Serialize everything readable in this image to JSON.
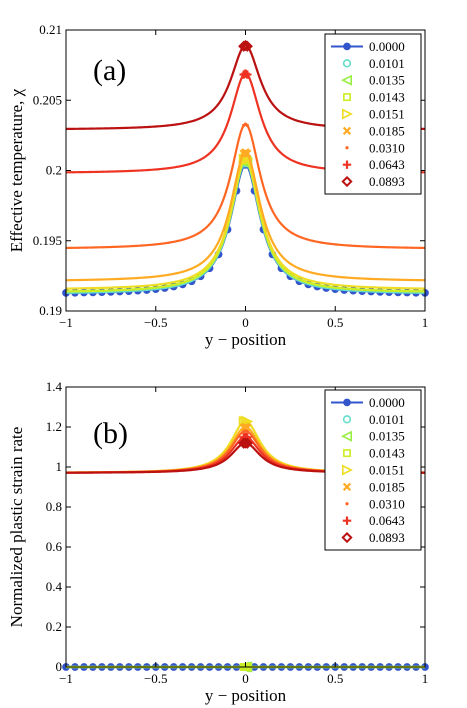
{
  "figure": {
    "panels": [
      {
        "label": "(a)",
        "xlabel": "y − position",
        "ylabel": "Effective temperature, χ",
        "xlim": [
          -1,
          1
        ],
        "ylim": [
          0.19,
          0.21
        ],
        "xticks": [
          "−1",
          "−0.5",
          "0",
          "0.5",
          "1"
        ],
        "yticks": [
          "0.19",
          "0.195",
          "0.2",
          "0.205",
          "0.21"
        ],
        "legend": [
          "0.0000",
          "0.0101",
          "0.0135",
          "0.0143",
          "0.0151",
          "0.0185",
          "0.0310",
          "0.0643",
          "0.0893"
        ]
      },
      {
        "label": "(b)",
        "xlabel": "y − position",
        "ylabel": "Normalized plastic strain rate",
        "xlim": [
          -1,
          1
        ],
        "ylim": [
          0,
          1.4
        ],
        "xticks": [
          "−1",
          "−0.5",
          "0",
          "0.5",
          "1"
        ],
        "yticks": [
          "0",
          "0.2",
          "0.4",
          "0.6",
          "0.8",
          "1",
          "1.2",
          "1.4"
        ],
        "legend": [
          "0.0000",
          "0.0101",
          "0.0135",
          "0.0143",
          "0.0151",
          "0.0185",
          "0.0310",
          "0.0643",
          "0.0893"
        ]
      }
    ]
  },
  "chart_data": [
    {
      "type": "line",
      "title": "(a)",
      "xlabel": "y − position",
      "ylabel": "Effective temperature, χ",
      "xlim": [
        -1,
        1
      ],
      "ylim": [
        0.19,
        0.21
      ],
      "legend_position": "top-right",
      "profile_width": 0.1,
      "series": [
        {
          "name": "0.0000",
          "color": "#3355cc",
          "marker": "circle-filled",
          "baseline": 0.1912,
          "peak": 0.2004
        },
        {
          "name": "0.0101",
          "color": "#66ddcc",
          "marker": "circle-open",
          "baseline": 0.1912,
          "peak": 0.2006
        },
        {
          "name": "0.0135",
          "color": "#99ee44",
          "marker": "triangle-left",
          "baseline": 0.1913,
          "peak": 0.2007
        },
        {
          "name": "0.0143",
          "color": "#ccee22",
          "marker": "square",
          "baseline": 0.1913,
          "peak": 0.2008
        },
        {
          "name": "0.0151",
          "color": "#eedd22",
          "marker": "triangle-right",
          "baseline": 0.1915,
          "peak": 0.2009
        },
        {
          "name": "0.0185",
          "color": "#ffaa22",
          "marker": "x",
          "baseline": 0.1921,
          "peak": 0.2013
        },
        {
          "name": "0.0310",
          "color": "#ff6622",
          "marker": "dot",
          "baseline": 0.1944,
          "peak": 0.2033
        },
        {
          "name": "0.0643",
          "color": "#ee3322",
          "marker": "plus",
          "baseline": 0.1998,
          "peak": 0.2069
        },
        {
          "name": "0.0893",
          "color": "#bb1111",
          "marker": "diamond",
          "baseline": 0.2029,
          "peak": 0.2089
        }
      ]
    },
    {
      "type": "line",
      "title": "(b)",
      "xlabel": "y − position",
      "ylabel": "Normalized plastic strain rate",
      "xlim": [
        -1,
        1
      ],
      "ylim": [
        0,
        1.4
      ],
      "legend_position": "top-right",
      "profile_width": 0.1,
      "series": [
        {
          "name": "0.0000",
          "color": "#3355cc",
          "marker": "circle-filled",
          "baseline": 0.0,
          "peak": 0.0
        },
        {
          "name": "0.0101",
          "color": "#66ddcc",
          "marker": "circle-open",
          "baseline": 0.0,
          "peak": 0.0
        },
        {
          "name": "0.0135",
          "color": "#99ee44",
          "marker": "triangle-left",
          "baseline": 0.0,
          "peak": 0.0
        },
        {
          "name": "0.0143",
          "color": "#ccee22",
          "marker": "square",
          "baseline": 0.0,
          "peak": 0.0
        },
        {
          "name": "0.0151",
          "color": "#eedd22",
          "marker": "triangle-right",
          "baseline": 0.97,
          "peak": 1.23
        },
        {
          "name": "0.0185",
          "color": "#ffaa22",
          "marker": "x",
          "baseline": 0.97,
          "peak": 1.2
        },
        {
          "name": "0.0310",
          "color": "#ff6622",
          "marker": "dot",
          "baseline": 0.97,
          "peak": 1.18
        },
        {
          "name": "0.0643",
          "color": "#ee3322",
          "marker": "plus",
          "baseline": 0.97,
          "peak": 1.15
        },
        {
          "name": "0.0893",
          "color": "#bb1111",
          "marker": "diamond",
          "baseline": 0.97,
          "peak": 1.12
        }
      ]
    }
  ]
}
